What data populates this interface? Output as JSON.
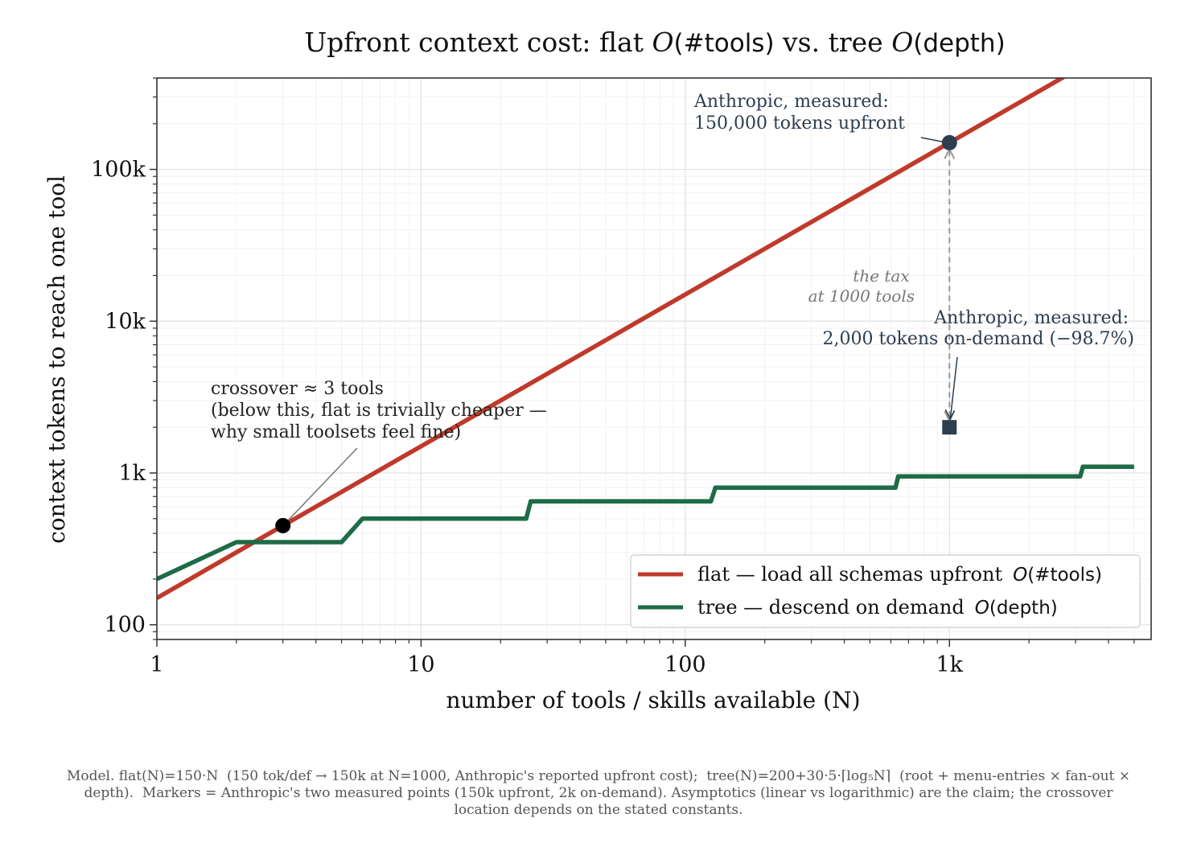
{
  "chart_data": {
    "type": "line",
    "title": {
      "prefix": "Upfront context cost: flat ",
      "o1": "O",
      "arg1": "(#tools)",
      "mid": " vs. tree ",
      "o2": "O",
      "arg2": "(depth)"
    },
    "xlabel": "number of tools / skills available  (N)",
    "ylabel": "context tokens to reach one tool",
    "xscale": "log",
    "yscale": "log",
    "xlim": [
      1,
      5800
    ],
    "ylim": [
      80,
      400000
    ],
    "x_ticks": [
      {
        "value": 1,
        "label": "1"
      },
      {
        "value": 10,
        "label": "10"
      },
      {
        "value": 100,
        "label": "100"
      },
      {
        "value": 1000,
        "label": "1k"
      }
    ],
    "y_ticks": [
      {
        "value": 100,
        "label": "100"
      },
      {
        "value": 1000,
        "label": "1k"
      },
      {
        "value": 10000,
        "label": "10k"
      },
      {
        "value": 100000,
        "label": "100k"
      }
    ],
    "grid": true,
    "legend_position": "lower right",
    "series": [
      {
        "name": "flat — load all schemas upfront",
        "name_math": "O(#tools)",
        "color": "#c0392b",
        "formula": "150*N",
        "x": [
          1,
          2700
        ],
        "y": [
          150,
          405000
        ]
      },
      {
        "name": "tree — descend on demand",
        "name_math": "O(depth)",
        "color": "#1e6b47",
        "formula": "200+30*5*ceil(log5 N)",
        "x": [
          1,
          2,
          5,
          6,
          25,
          26,
          125,
          130,
          625,
          640,
          3125,
          3200,
          5000
        ],
        "y": [
          200,
          350,
          350,
          500,
          500,
          650,
          650,
          800,
          800,
          950,
          950,
          1100,
          1100
        ]
      }
    ],
    "markers": [
      {
        "name": "flat measured",
        "x": 1000,
        "y": 150000,
        "shape": "circle",
        "color": "#2c3e50"
      },
      {
        "name": "tree measured",
        "x": 1000,
        "y": 2000,
        "shape": "square",
        "color": "#2c3e50"
      },
      {
        "name": "crossover",
        "x": 3,
        "y": 450,
        "shape": "circle",
        "color": "#000000"
      }
    ],
    "annotations": {
      "flat_measured": [
        "Anthropic, measured:",
        "150,000 tokens upfront"
      ],
      "tree_measured": [
        "Anthropic, measured:",
        "2,000 tokens on-demand  (−98.7%)"
      ],
      "crossover": [
        "crossover ≈ 3 tools",
        "(below this, flat is trivially cheaper —",
        "why small toolsets feel fine)"
      ],
      "tax": [
        "the tax",
        "at 1000 tools"
      ]
    },
    "footnote": [
      "Model. flat(N)=150·N  (150 tok/def → 150k at N=1000, Anthropic's reported upfront cost);  tree(N)=200+30·5·⌈log₅N⌉  (root + menu-entries × fan-out ×",
      "depth).  Markers = Anthropic's two measured points (150k upfront, 2k on-demand). Asymptotics (linear vs logarithmic) are the claim; the crossover",
      "location depends on the stated constants."
    ]
  }
}
